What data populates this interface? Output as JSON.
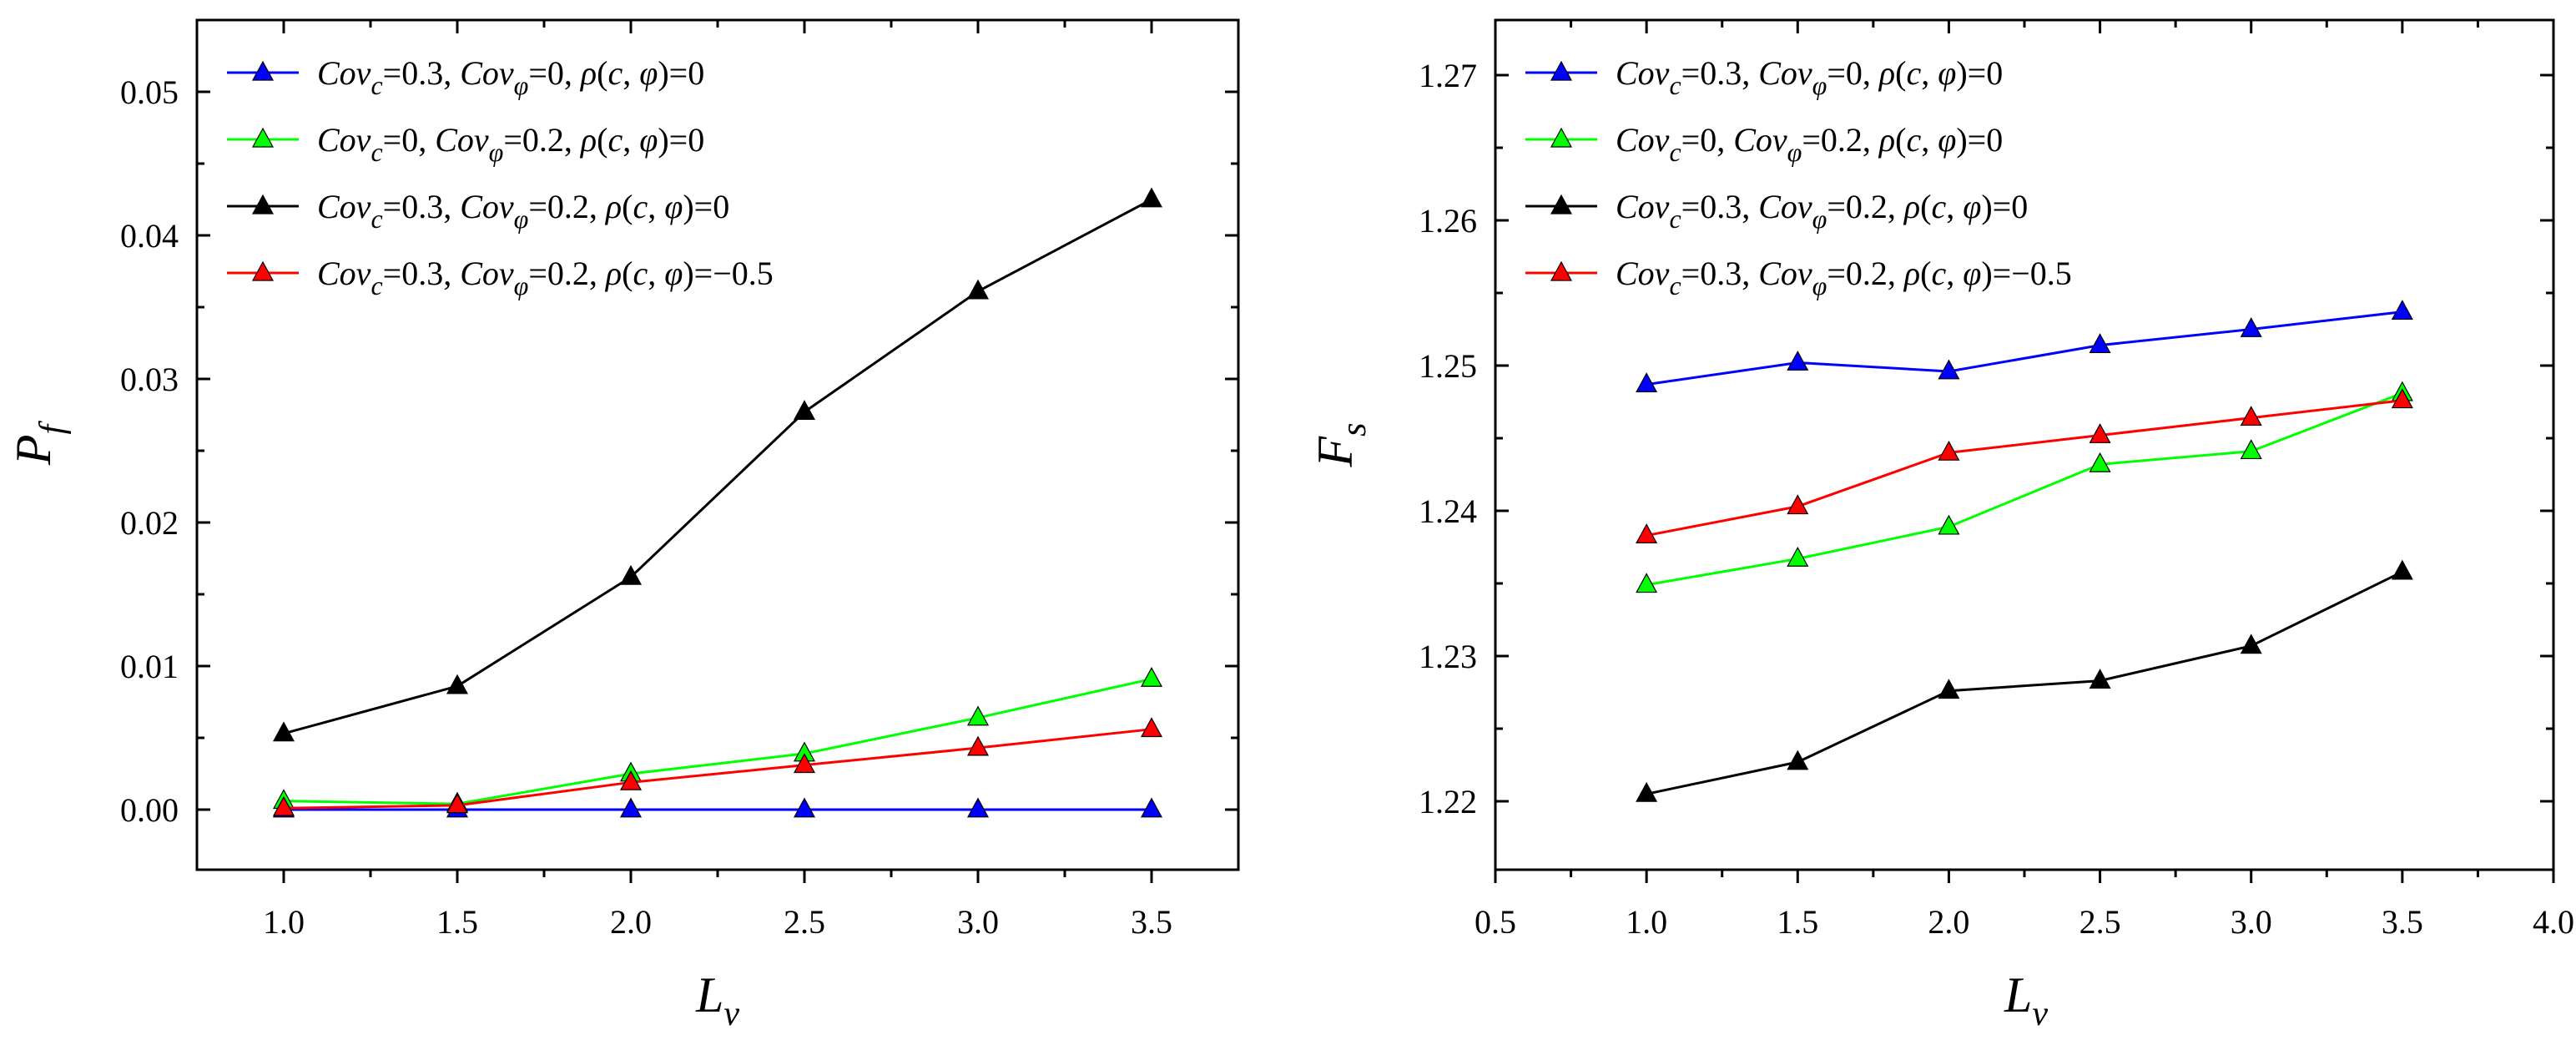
{
  "chart_data": [
    {
      "type": "line",
      "xlabel": "L",
      "xlabel_sub": "v",
      "ylabel": "P",
      "ylabel_sub": "f",
      "xlim": [
        0.75,
        3.75
      ],
      "ylim": [
        -0.005,
        0.055
      ],
      "xticks": [
        "1.0",
        "1.5",
        "2.0",
        "2.5",
        "3.0",
        "3.5"
      ],
      "xtick_values": [
        1.0,
        1.5,
        2.0,
        2.5,
        3.0,
        3.5
      ],
      "yticks": [
        "0.00",
        "0.01",
        "0.02",
        "0.03",
        "0.04",
        "0.05"
      ],
      "ytick_values": [
        0.0,
        0.01,
        0.02,
        0.03,
        0.04,
        0.05
      ],
      "legend_position": "top-left",
      "x": [
        1.0,
        1.5,
        2.0,
        2.5,
        3.0,
        3.5
      ],
      "series": [
        {
          "name": "Covc=0.3, Covφ=0, ρ(c, φ)=0",
          "color": "#0000ff",
          "values": [
            0.0,
            0.0,
            0.0,
            0.0,
            0.0,
            0.0
          ],
          "legend": {
            "a": "Cov",
            "asub": "c",
            "b": "=0.3, ",
            "c": "Cov",
            "csub": "φ",
            "d": "=0, ",
            "e": "ρ",
            "f": "(",
            "g": "c",
            "h": ", ",
            "i": "φ",
            "j": ")=0"
          }
        },
        {
          "name": "Covc=0, Covφ=0.2, ρ(c, φ)=0",
          "color": "#00ff00",
          "values": [
            0.0006,
            0.0004,
            0.0025,
            0.0039,
            0.0064,
            0.0091
          ],
          "legend": {
            "a": "Cov",
            "asub": "c",
            "b": "=0, ",
            "c": "Cov",
            "csub": "φ",
            "d": "=0.2, ",
            "e": "ρ",
            "f": "(",
            "g": "c",
            "h": ", ",
            "i": "φ",
            "j": ")=0"
          }
        },
        {
          "name": "Covc=0.3, Covφ=0.2, ρ(c, φ)=0",
          "color": "#000000",
          "values": [
            0.0053,
            0.0086,
            0.0162,
            0.0277,
            0.0361,
            0.0425
          ],
          "legend": {
            "a": "Cov",
            "asub": "c",
            "b": "=0.3, ",
            "c": "Cov",
            "csub": "φ",
            "d": "=0.2, ",
            "e": "ρ",
            "f": "(",
            "g": "c",
            "h": ", ",
            "i": "φ",
            "j": ")=0"
          }
        },
        {
          "name": "Covc=0.3, Covφ=0.2, ρ(c, φ)=−0.5",
          "color": "#ff0000",
          "values": [
            0.0001,
            0.0003,
            0.0019,
            0.0031,
            0.0043,
            0.0056
          ],
          "legend": {
            "a": "Cov",
            "asub": "c",
            "b": "=0.3, ",
            "c": "Cov",
            "csub": "φ",
            "d": "=0.2, ",
            "e": "ρ",
            "f": "(",
            "g": "c",
            "h": ", ",
            "i": "φ",
            "j": ")=−0.5"
          }
        }
      ]
    },
    {
      "type": "line",
      "xlabel": "L",
      "xlabel_sub": "v",
      "ylabel": "F",
      "ylabel_sub": "s",
      "xlim": [
        0.5,
        4.0
      ],
      "ylim": [
        1.215,
        1.274
      ],
      "xticks": [
        "0.5",
        "1.0",
        "1.5",
        "2.0",
        "2.5",
        "3.0",
        "3.5",
        "4.0"
      ],
      "xtick_values": [
        0.5,
        1.0,
        1.5,
        2.0,
        2.5,
        3.0,
        3.5,
        4.0
      ],
      "yticks": [
        "1.22",
        "1.23",
        "1.24",
        "1.25",
        "1.26",
        "1.27"
      ],
      "ytick_values": [
        1.22,
        1.23,
        1.24,
        1.25,
        1.26,
        1.27
      ],
      "legend_position": "top-left",
      "x": [
        1.0,
        1.5,
        2.0,
        2.5,
        3.0,
        3.5
      ],
      "series": [
        {
          "name": "Covc=0.3, Covφ=0, ρ(c, φ)=0",
          "color": "#0000ff",
          "values": [
            1.2487,
            1.2502,
            1.2496,
            1.2514,
            1.2525,
            1.2537
          ],
          "legend": {
            "a": "Cov",
            "asub": "c",
            "b": "=0.3, ",
            "c": "Cov",
            "csub": "φ",
            "d": "=0, ",
            "e": "ρ",
            "f": "(",
            "g": "c",
            "h": ", ",
            "i": "φ",
            "j": ")=0"
          }
        },
        {
          "name": "Covc=0, Covφ=0.2, ρ(c, φ)=0",
          "color": "#00ff00",
          "values": [
            1.2349,
            1.2367,
            1.2389,
            1.2432,
            1.2441,
            1.2481
          ],
          "legend": {
            "a": "Cov",
            "asub": "c",
            "b": "=0, ",
            "c": "Cov",
            "csub": "φ",
            "d": "=0.2, ",
            "e": "ρ",
            "f": "(",
            "g": "c",
            "h": ", ",
            "i": "φ",
            "j": ")=0"
          }
        },
        {
          "name": "Covc=0.3, Covφ=0.2, ρ(c, φ)=0",
          "color": "#000000",
          "values": [
            1.2205,
            1.2227,
            1.2276,
            1.2283,
            1.2307,
            1.2358
          ],
          "legend": {
            "a": "Cov",
            "asub": "c",
            "b": "=0.3, ",
            "c": "Cov",
            "csub": "φ",
            "d": "=0.2, ",
            "e": "ρ",
            "f": "(",
            "g": "c",
            "h": ", ",
            "i": "φ",
            "j": ")=0"
          }
        },
        {
          "name": "Covc=0.3, Covφ=0.2, ρ(c, φ)=−0.5",
          "color": "#ff0000",
          "values": [
            1.2383,
            1.2403,
            1.244,
            1.2452,
            1.2464,
            1.2476
          ],
          "legend": {
            "a": "Cov",
            "asub": "c",
            "b": "=0.3, ",
            "c": "Cov",
            "csub": "φ",
            "d": "=0.2, ",
            "e": "ρ",
            "f": "(",
            "g": "c",
            "h": ", ",
            "i": "φ",
            "j": ")=−0.5"
          }
        }
      ]
    }
  ]
}
